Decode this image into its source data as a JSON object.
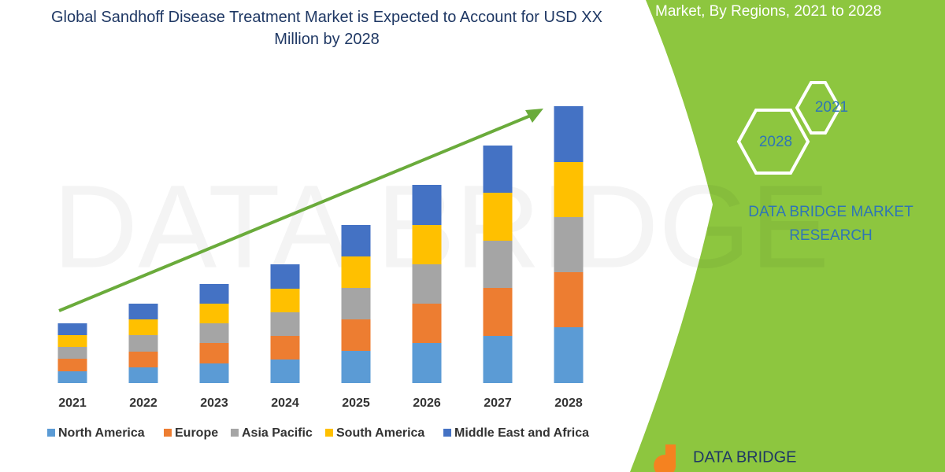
{
  "chart_data": {
    "type": "bar",
    "stacked": true,
    "title": "Global Sandhoff Disease Treatment Market is Expected to Account for USD XX Million by 2028",
    "categories": [
      "2021",
      "2022",
      "2023",
      "2024",
      "2025",
      "2026",
      "2027",
      "2028"
    ],
    "series": [
      {
        "name": "North America",
        "color": "#5b9bd5",
        "values": [
          15,
          20,
          25,
          30,
          41,
          51,
          60,
          71
        ]
      },
      {
        "name": "Europe",
        "color": "#ed7d31",
        "values": [
          16,
          20,
          26,
          30,
          40,
          50,
          61,
          70
        ]
      },
      {
        "name": "Asia Pacific",
        "color": "#a5a5a5",
        "values": [
          15,
          21,
          25,
          30,
          40,
          50,
          60,
          70
        ]
      },
      {
        "name": "South America",
        "color": "#ffc000",
        "values": [
          15,
          20,
          25,
          30,
          40,
          50,
          61,
          70
        ]
      },
      {
        "name": "Middle East and Africa",
        "color": "#4472c4",
        "values": [
          15,
          20,
          25,
          31,
          40,
          51,
          60,
          71
        ]
      }
    ]
  },
  "panel": {
    "heading": "Market, By Regions, 2021 to 2028",
    "hexagons": [
      "2021",
      "2028"
    ],
    "brand": "DATA BRIDGE MARKET RESEARCH",
    "logo": "DATA BRIDGE"
  }
}
